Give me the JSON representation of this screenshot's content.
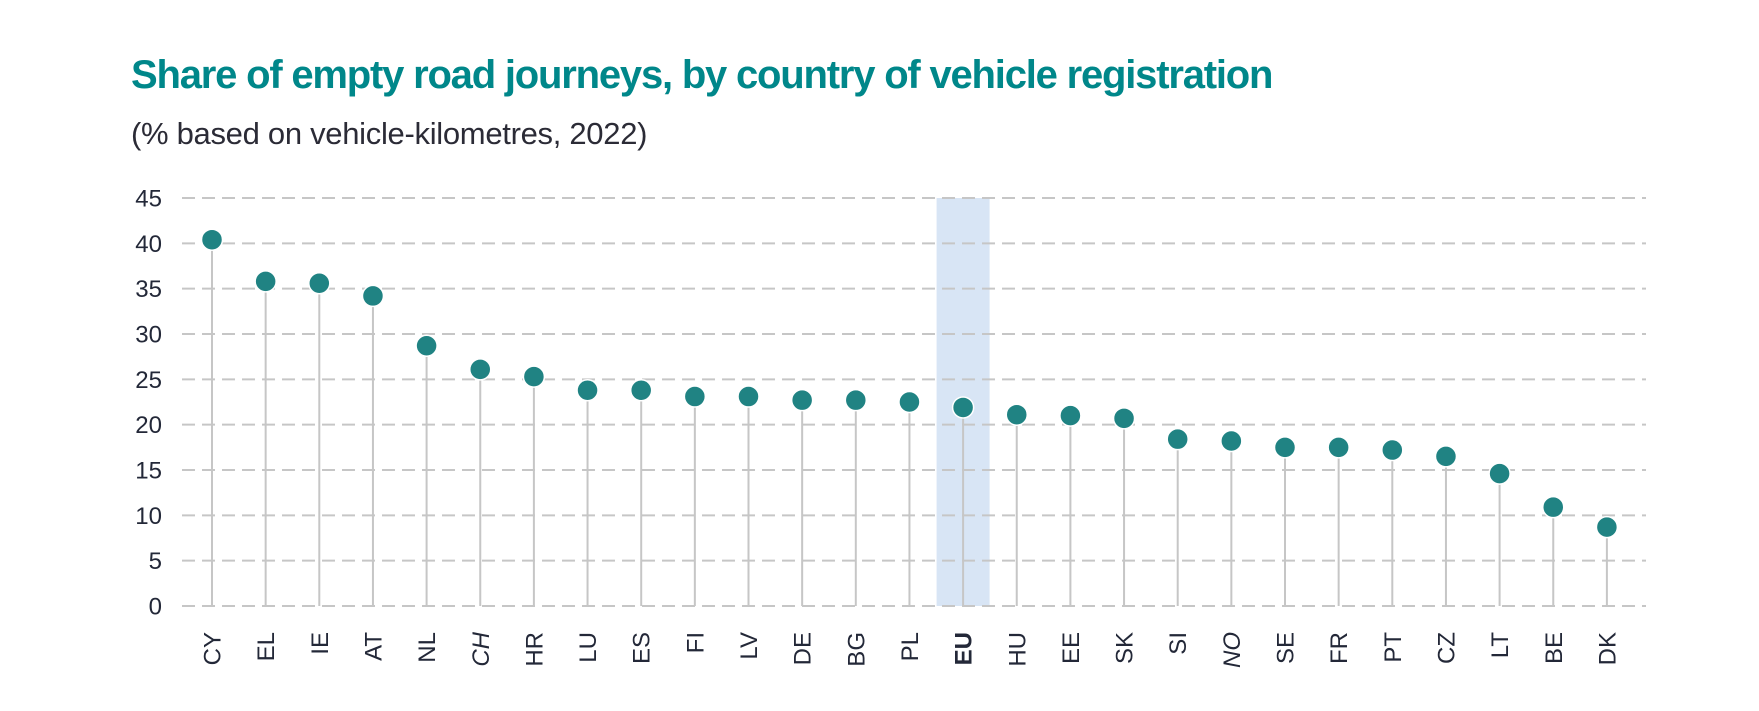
{
  "chart_data": {
    "type": "lollipop",
    "title": "Share of empty road journeys, by country of vehicle registration",
    "subtitle": "(% based on vehicle-kilometres, 2022)",
    "xlabel": "",
    "ylabel": "",
    "ylim": [
      0,
      45
    ],
    "yticks": [
      0,
      5,
      10,
      15,
      20,
      25,
      30,
      35,
      40,
      45
    ],
    "grid": "horizontal dashed",
    "legend": "none",
    "highlight_category": "EU",
    "italic_categories": [
      "CH",
      "NO"
    ],
    "categories": [
      "CY",
      "EL",
      "IE",
      "AT",
      "NL",
      "CH",
      "HR",
      "LU",
      "ES",
      "FI",
      "LV",
      "DE",
      "BG",
      "PL",
      "EU",
      "HU",
      "EE",
      "SK",
      "SI",
      "NO",
      "SE",
      "FR",
      "PT",
      "CZ",
      "LT",
      "BE",
      "DK"
    ],
    "values": [
      40.4,
      35.8,
      35.6,
      34.2,
      28.7,
      26.1,
      25.3,
      23.8,
      23.8,
      23.1,
      23.1,
      22.7,
      22.7,
      22.5,
      21.9,
      21.1,
      21.0,
      20.7,
      18.4,
      18.2,
      17.5,
      17.5,
      17.2,
      16.5,
      14.6,
      10.9,
      8.7
    ]
  },
  "colors": {
    "title": "#00878a",
    "marker": "#208383",
    "stem": "#c6c6c6",
    "grid": "#c6c6c6",
    "highlight_band": "#d8e5f5",
    "highlight_label": "#2a47b5",
    "text": "#232838"
  }
}
